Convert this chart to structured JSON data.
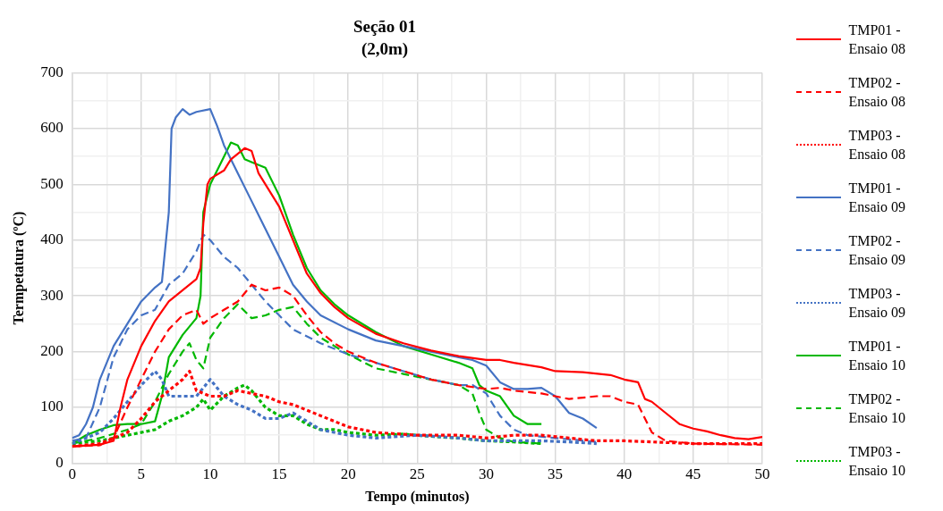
{
  "chart_data": {
    "type": "line",
    "title": "Seção 01",
    "subtitle": "(2,0m)",
    "xlabel": "Tempo (minutos)",
    "ylabel": "Termpetatura (ºC)",
    "xlim": [
      0,
      50
    ],
    "xticks": [
      0,
      {
        "value": 2.5,
        "label": null
      },
      5,
      {
        "value": 7.5,
        "label": null
      },
      10,
      {
        "value": 12.5,
        "label": null
      },
      15,
      {
        "value": 17.5,
        "label": null
      },
      20,
      {
        "value": 22.5,
        "label": null
      },
      25,
      {
        "value": 27.5,
        "label": null
      },
      30,
      {
        "value": 32.5,
        "label": null
      },
      35,
      {
        "value": 37.5,
        "label": null
      },
      40,
      {
        "value": 42.5,
        "label": null
      },
      45,
      {
        "value": 47.5,
        "label": null
      },
      50
    ],
    "ylim": [
      0,
      700
    ],
    "yticks": [
      0,
      {
        "value": 50,
        "label": null
      },
      100,
      {
        "value": 150,
        "label": null
      },
      200,
      {
        "value": 250,
        "label": null
      },
      300,
      {
        "value": 350,
        "label": null
      },
      400,
      {
        "value": 450,
        "label": null
      },
      500,
      {
        "value": 550,
        "label": null
      },
      600,
      {
        "value": 650,
        "label": null
      },
      700
    ],
    "grid": true,
    "legend": "right",
    "marker": "none",
    "series": [
      {
        "name": "TMP01 - Ensaio 08",
        "color": "#ff0000",
        "line_style": "solid",
        "x": [
          0,
          2,
          3,
          3.5,
          4,
          5,
          6,
          7,
          8,
          9,
          9.3,
          9.5,
          9.8,
          10,
          11,
          11.5,
          12,
          12.5,
          13,
          13.5,
          14,
          15,
          16,
          17,
          18,
          19,
          20,
          22,
          24,
          26,
          28,
          30,
          31,
          32,
          34,
          35,
          37,
          39,
          40,
          41,
          41.5,
          42,
          43,
          44,
          45,
          46,
          47,
          48,
          49,
          50
        ],
        "values": [
          30,
          33,
          40,
          100,
          150,
          210,
          255,
          290,
          310,
          330,
          350,
          430,
          500,
          510,
          525,
          545,
          555,
          565,
          560,
          520,
          500,
          460,
          400,
          340,
          305,
          280,
          260,
          232,
          215,
          202,
          192,
          185,
          185,
          180,
          172,
          165,
          163,
          158,
          150,
          145,
          115,
          110,
          90,
          70,
          62,
          57,
          50,
          45,
          43,
          47
        ]
      },
      {
        "name": "TMP02 - Ensaio 08",
        "color": "#ff0000",
        "line_style": "dashed",
        "x": [
          0,
          2,
          3,
          4,
          5,
          6,
          7,
          8,
          9,
          9.5,
          10,
          11,
          12,
          13,
          14,
          15,
          16,
          17,
          18,
          19,
          20,
          22,
          24,
          26,
          28,
          30,
          31,
          32,
          34,
          36,
          38,
          39,
          40,
          41,
          41.5,
          42,
          43,
          45,
          50
        ],
        "values": [
          30,
          32,
          45,
          100,
          150,
          200,
          240,
          265,
          275,
          250,
          260,
          275,
          290,
          320,
          310,
          315,
          300,
          265,
          235,
          215,
          200,
          180,
          165,
          150,
          140,
          133,
          135,
          130,
          125,
          115,
          120,
          120,
          110,
          105,
          80,
          55,
          40,
          35,
          33
        ]
      },
      {
        "name": "TMP03 - Ensaio 08",
        "color": "#ff0000",
        "line_style": "dotted",
        "x": [
          0,
          2,
          4,
          5,
          6,
          7,
          8,
          8.5,
          9,
          10,
          11,
          12,
          13,
          14,
          15,
          16,
          18,
          19,
          20,
          22,
          25,
          28,
          30,
          32,
          34,
          36,
          38,
          40,
          42,
          45,
          50
        ],
        "values": [
          30,
          35,
          55,
          80,
          110,
          130,
          150,
          165,
          130,
          120,
          120,
          130,
          125,
          120,
          110,
          105,
          85,
          75,
          65,
          55,
          50,
          50,
          45,
          50,
          50,
          45,
          40,
          40,
          38,
          35,
          35
        ]
      },
      {
        "name": "TMP01 - Ensaio 09",
        "color": "#4472c4",
        "line_style": "solid",
        "x": [
          0,
          0.5,
          1,
          1.5,
          2,
          3,
          4,
          5,
          6,
          6.5,
          7,
          7.2,
          7.5,
          8,
          8.5,
          9,
          10,
          10.5,
          11,
          12,
          13,
          14,
          15,
          16,
          17,
          18,
          20,
          22,
          24,
          26,
          28,
          29,
          30,
          31,
          32,
          33,
          34,
          35,
          36,
          37,
          38
        ],
        "values": [
          45,
          50,
          70,
          100,
          150,
          210,
          250,
          290,
          315,
          325,
          450,
          600,
          620,
          635,
          625,
          630,
          635,
          605,
          570,
          520,
          470,
          420,
          370,
          320,
          290,
          265,
          240,
          220,
          210,
          200,
          190,
          185,
          175,
          145,
          133,
          133,
          135,
          120,
          90,
          80,
          63
        ]
      },
      {
        "name": "TMP02 - Ensaio 09",
        "color": "#4472c4",
        "line_style": "dashed",
        "x": [
          0,
          1,
          2,
          3,
          4,
          5,
          6,
          7,
          8,
          9,
          9.5,
          10,
          11,
          12,
          13,
          14,
          15,
          16,
          18,
          20,
          22,
          24,
          26,
          28,
          29,
          30,
          31,
          32,
          33,
          35,
          38
        ],
        "values": [
          40,
          45,
          100,
          190,
          240,
          265,
          275,
          320,
          340,
          380,
          410,
          400,
          370,
          350,
          320,
          290,
          265,
          240,
          215,
          195,
          180,
          165,
          150,
          140,
          140,
          125,
          85,
          60,
          50,
          45,
          38
        ]
      },
      {
        "name": "TMP03 - Ensaio 09",
        "color": "#4472c4",
        "line_style": "dotted",
        "x": [
          0,
          2,
          3,
          4,
          5,
          6,
          6.5,
          7,
          8,
          9,
          10,
          11,
          12,
          13,
          14,
          15,
          16,
          17,
          18,
          20,
          22,
          25,
          28,
          30,
          32,
          34,
          36,
          38
        ],
        "values": [
          35,
          55,
          80,
          110,
          140,
          165,
          150,
          120,
          120,
          120,
          150,
          120,
          105,
          95,
          80,
          80,
          90,
          75,
          60,
          50,
          45,
          50,
          45,
          40,
          40,
          40,
          38,
          35
        ]
      },
      {
        "name": "TMP01 - Ensaio 10",
        "color": "#00b800",
        "line_style": "solid",
        "x": [
          0,
          1,
          2,
          3,
          4,
          5,
          6,
          6.5,
          7,
          8,
          9,
          9.3,
          9.5,
          10,
          11,
          11.5,
          12,
          12.5,
          13,
          14,
          15,
          16,
          17,
          18,
          19,
          20,
          22,
          24,
          26,
          28,
          29,
          29.5,
          30,
          31,
          32,
          33,
          34
        ],
        "values": [
          35,
          50,
          60,
          68,
          70,
          70,
          75,
          120,
          190,
          230,
          260,
          300,
          450,
          500,
          550,
          575,
          570,
          545,
          540,
          530,
          480,
          410,
          350,
          310,
          285,
          265,
          235,
          210,
          195,
          180,
          170,
          140,
          130,
          120,
          85,
          70,
          70
        ]
      },
      {
        "name": "TMP02 - Ensaio 10",
        "color": "#00b800",
        "line_style": "dashed",
        "x": [
          0,
          2,
          4,
          5,
          6,
          7,
          8,
          8.5,
          9,
          9.5,
          10,
          11,
          12,
          13,
          14,
          15,
          16,
          17,
          18,
          19,
          20,
          22,
          24,
          26,
          28,
          29,
          29.5,
          30,
          31,
          32,
          34
        ],
        "values": [
          35,
          45,
          60,
          70,
          110,
          160,
          200,
          215,
          185,
          170,
          225,
          260,
          285,
          260,
          265,
          275,
          280,
          250,
          225,
          210,
          195,
          170,
          160,
          150,
          140,
          125,
          90,
          60,
          45,
          38,
          35
        ]
      },
      {
        "name": "TMP03 - Ensaio 10",
        "color": "#00b800",
        "line_style": "dotted",
        "x": [
          0,
          2,
          4,
          6,
          7,
          8,
          9,
          9.5,
          10,
          11,
          12,
          12.5,
          13,
          14,
          15,
          16,
          17,
          18,
          19,
          20,
          22,
          24,
          26,
          28,
          30,
          32,
          34
        ],
        "values": [
          35,
          40,
          50,
          60,
          75,
          85,
          100,
          115,
          95,
          120,
          135,
          140,
          130,
          100,
          85,
          85,
          70,
          60,
          60,
          55,
          50,
          52,
          48,
          45,
          40,
          38,
          35
        ]
      }
    ]
  }
}
